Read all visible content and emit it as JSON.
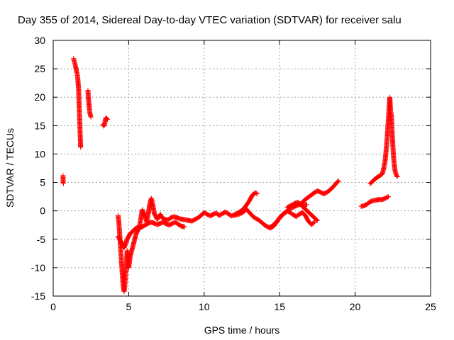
{
  "chart_data": {
    "type": "scatter",
    "title": "Day 355 of 2014, Sidereal Day-to-day VTEC variation (SDTVAR) for receiver salu",
    "xlabel": "GPS time / hours",
    "ylabel": "SDTVAR / TECUs",
    "xlim": [
      0,
      25
    ],
    "ylim": [
      -15,
      30
    ],
    "xticks": [
      "0",
      "5",
      "10",
      "15",
      "20",
      "25"
    ],
    "yticks": [
      "-15",
      "-10",
      "-5",
      "0",
      "5",
      "10",
      "15",
      "20",
      "25",
      "30"
    ],
    "grid": true,
    "marker": "+",
    "color": "#ff0000",
    "series": [
      {
        "name": "SDTVAR",
        "segments": [
          [
            [
              0.65,
              6.2
            ],
            [
              0.66,
              5.0
            ],
            [
              0.68,
              4.8
            ]
          ],
          [
            [
              1.35,
              26.8
            ],
            [
              1.4,
              26.3
            ],
            [
              1.45,
              25.8
            ],
            [
              1.5,
              25.2
            ],
            [
              1.55,
              24.5
            ],
            [
              1.6,
              24.0
            ],
            [
              1.62,
              23.5
            ],
            [
              1.65,
              22.5
            ],
            [
              1.68,
              21.5
            ],
            [
              1.7,
              20.0
            ],
            [
              1.72,
              18.5
            ],
            [
              1.74,
              17.0
            ],
            [
              1.76,
              15.5
            ],
            [
              1.78,
              14.0
            ],
            [
              1.8,
              12.5
            ],
            [
              1.82,
              11.2
            ]
          ],
          [
            [
              2.3,
              21.2
            ],
            [
              2.33,
              20.0
            ],
            [
              2.36,
              19.0
            ],
            [
              2.4,
              18.0
            ],
            [
              2.43,
              17.2
            ],
            [
              2.47,
              16.8
            ],
            [
              2.5,
              16.5
            ]
          ],
          [
            [
              3.3,
              15.2
            ],
            [
              3.35,
              14.9
            ],
            [
              3.4,
              15.2
            ],
            [
              3.45,
              16.0
            ],
            [
              3.5,
              16.4
            ],
            [
              3.55,
              16.2
            ],
            [
              3.6,
              16.1
            ]
          ],
          [
            [
              4.3,
              -0.8
            ],
            [
              4.35,
              -2.0
            ],
            [
              4.4,
              -4.0
            ],
            [
              4.45,
              -6.0
            ],
            [
              4.5,
              -8.0
            ],
            [
              4.55,
              -10.0
            ],
            [
              4.6,
              -12.0
            ],
            [
              4.65,
              -13.5
            ],
            [
              4.7,
              -14.2
            ],
            [
              4.75,
              -13.0
            ],
            [
              4.8,
              -11.0
            ],
            [
              4.85,
              -9.0
            ],
            [
              4.9,
              -7.0
            ],
            [
              4.95,
              -9.0
            ],
            [
              5.0,
              -10.0
            ],
            [
              5.05,
              -9.0
            ],
            [
              5.1,
              -8.0
            ],
            [
              5.2,
              -7.0
            ],
            [
              5.3,
              -6.0
            ],
            [
              5.4,
              -5.0
            ],
            [
              5.5,
              -4.0
            ],
            [
              5.6,
              -3.5
            ],
            [
              5.7,
              -3.0
            ],
            [
              5.8,
              -1.5
            ],
            [
              5.9,
              0.2
            ],
            [
              6.0,
              -0.5
            ],
            [
              6.1,
              -1.0
            ],
            [
              6.2,
              -2.0
            ],
            [
              6.3,
              -0.5
            ],
            [
              6.4,
              1.2
            ],
            [
              6.5,
              2.2
            ],
            [
              6.6,
              1.0
            ],
            [
              6.7,
              -0.5
            ],
            [
              6.8,
              -1.0
            ],
            [
              6.9,
              -1.5
            ],
            [
              7.0,
              -1.0
            ],
            [
              7.1,
              -0.6
            ],
            [
              7.2,
              -1.2
            ],
            [
              7.4,
              -1.5
            ],
            [
              7.6,
              -1.6
            ],
            [
              7.8,
              -1.2
            ],
            [
              8.0,
              -1.0
            ],
            [
              8.2,
              -1.2
            ],
            [
              8.4,
              -1.4
            ],
            [
              8.6,
              -1.5
            ],
            [
              8.8,
              -1.6
            ],
            [
              9.0,
              -1.7
            ],
            [
              9.2,
              -1.8
            ],
            [
              9.4,
              -1.5
            ],
            [
              9.6,
              -1.2
            ],
            [
              9.8,
              -0.8
            ],
            [
              10.0,
              -0.3
            ],
            [
              10.2,
              -0.6
            ],
            [
              10.4,
              -0.9
            ],
            [
              10.6,
              -0.6
            ],
            [
              10.8,
              -0.4
            ],
            [
              11.0,
              -0.8
            ],
            [
              11.2,
              -0.5
            ],
            [
              11.4,
              -0.2
            ],
            [
              11.6,
              -0.5
            ],
            [
              11.8,
              -0.9
            ],
            [
              12.0,
              -0.7
            ],
            [
              12.2,
              -0.4
            ],
            [
              12.4,
              -0.1
            ],
            [
              12.6,
              0.3
            ],
            [
              12.8,
              1.0
            ],
            [
              13.0,
              1.8
            ],
            [
              13.2,
              2.8
            ],
            [
              13.4,
              3.2
            ],
            [
              13.5,
              3.0
            ]
          ],
          [
            [
              4.3,
              -4.5
            ],
            [
              4.5,
              -5.5
            ],
            [
              4.7,
              -6.5
            ],
            [
              4.9,
              -5.0
            ],
            [
              5.1,
              -4.0
            ],
            [
              5.3,
              -3.5
            ],
            [
              5.5,
              -3.0
            ],
            [
              5.7,
              -3.0
            ],
            [
              5.9,
              -2.8
            ],
            [
              6.1,
              -2.5
            ],
            [
              6.3,
              -2.2
            ],
            [
              6.5,
              -2.0
            ],
            [
              6.7,
              -2.2
            ],
            [
              6.9,
              -2.4
            ],
            [
              7.1,
              -2.2
            ],
            [
              7.3,
              -2.0
            ],
            [
              7.5,
              -2.3
            ],
            [
              7.7,
              -2.5
            ],
            [
              7.9,
              -2.2
            ],
            [
              8.1,
              -2.0
            ],
            [
              8.3,
              -2.4
            ],
            [
              8.5,
              -2.7
            ],
            [
              8.7,
              -2.8
            ]
          ],
          [
            [
              12.0,
              -0.8
            ],
            [
              12.3,
              -0.6
            ],
            [
              12.6,
              -0.2
            ],
            [
              12.8,
              0.3
            ],
            [
              13.0,
              -0.3
            ],
            [
              13.2,
              -0.9
            ],
            [
              13.4,
              -1.3
            ],
            [
              13.6,
              -1.6
            ],
            [
              13.8,
              -2.0
            ],
            [
              14.0,
              -2.5
            ],
            [
              14.2,
              -2.8
            ],
            [
              14.4,
              -3.0
            ],
            [
              14.6,
              -2.7
            ],
            [
              14.8,
              -2.0
            ],
            [
              15.0,
              -1.2
            ],
            [
              15.2,
              -0.6
            ],
            [
              15.4,
              -0.3
            ],
            [
              15.6,
              0.3
            ],
            [
              15.8,
              0.5
            ],
            [
              16.0,
              0.8
            ],
            [
              16.2,
              1.0
            ],
            [
              16.4,
              1.2
            ],
            [
              16.6,
              1.0
            ],
            [
              16.8,
              1.1
            ]
          ],
          [
            [
              14.3,
              -3.0
            ],
            [
              14.5,
              -2.7
            ],
            [
              14.7,
              -2.2
            ],
            [
              14.9,
              -1.6
            ],
            [
              15.1,
              -1.0
            ],
            [
              15.3,
              -0.4
            ],
            [
              15.5,
              0.0
            ],
            [
              15.7,
              -0.3
            ],
            [
              15.9,
              -0.7
            ],
            [
              16.1,
              -1.0
            ],
            [
              16.3,
              -0.6
            ],
            [
              16.5,
              -0.3
            ],
            [
              16.7,
              -0.8
            ],
            [
              16.9,
              -1.8
            ],
            [
              17.1,
              -2.4
            ],
            [
              17.3,
              -2.0
            ]
          ],
          [
            [
              15.5,
              0.6
            ],
            [
              15.8,
              1.0
            ],
            [
              16.0,
              1.3
            ],
            [
              16.2,
              1.5
            ],
            [
              16.4,
              1.2
            ],
            [
              16.5,
              0.8
            ],
            [
              16.7,
              0.3
            ],
            [
              16.9,
              -0.2
            ],
            [
              17.1,
              -0.7
            ],
            [
              17.3,
              -1.2
            ],
            [
              17.5,
              -1.7
            ]
          ],
          [
            [
              16.5,
              1.5
            ],
            [
              16.7,
              2.0
            ],
            [
              16.9,
              2.4
            ],
            [
              17.1,
              2.8
            ],
            [
              17.3,
              3.2
            ],
            [
              17.5,
              3.5
            ],
            [
              17.7,
              3.3
            ],
            [
              17.9,
              3.0
            ],
            [
              18.1,
              3.2
            ],
            [
              18.3,
              3.6
            ],
            [
              18.5,
              4.1
            ],
            [
              18.7,
              4.7
            ],
            [
              18.9,
              5.3
            ]
          ],
          [
            [
              20.4,
              0.8
            ],
            [
              20.6,
              0.9
            ],
            [
              20.8,
              1.2
            ],
            [
              21.0,
              1.6
            ],
            [
              21.2,
              1.8
            ],
            [
              21.4,
              1.9
            ],
            [
              21.6,
              2.0
            ],
            [
              21.8,
              2.0
            ],
            [
              22.0,
              2.2
            ],
            [
              22.2,
              2.5
            ]
          ],
          [
            [
              21.0,
              4.8
            ],
            [
              21.2,
              5.3
            ],
            [
              21.4,
              5.8
            ],
            [
              21.6,
              6.1
            ],
            [
              21.8,
              6.5
            ],
            [
              21.9,
              7.5
            ],
            [
              22.0,
              9.0
            ],
            [
              22.05,
              10.5
            ],
            [
              22.1,
              12.0
            ],
            [
              22.15,
              14.0
            ],
            [
              22.2,
              16.0
            ],
            [
              22.25,
              18.0
            ],
            [
              22.3,
              20.0
            ],
            [
              22.35,
              17.5
            ],
            [
              22.4,
              17.0
            ],
            [
              22.45,
              14.0
            ],
            [
              22.5,
              11.5
            ],
            [
              22.55,
              9.5
            ],
            [
              22.6,
              8.0
            ],
            [
              22.65,
              7.0
            ],
            [
              22.7,
              6.5
            ],
            [
              22.75,
              6.2
            ],
            [
              22.8,
              6.0
            ]
          ]
        ]
      }
    ]
  }
}
